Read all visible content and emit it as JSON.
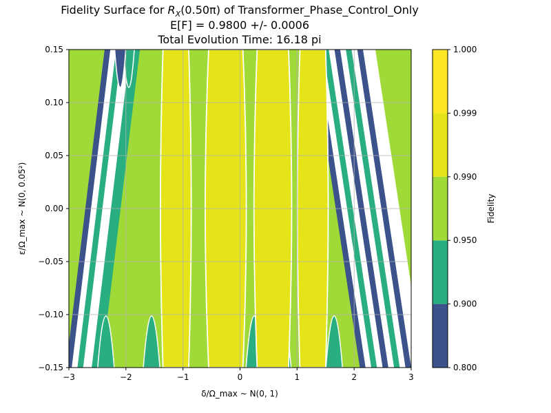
{
  "chart_data": {
    "type": "heatmap",
    "subtype": "filled-contour",
    "title_lines": [
      "Fidelity Surface for R_X(0.50π) of Transformer_Phase_Control_Only",
      "E[F] = 0.9800 +/- 0.0006",
      "Total Evolution Time: 16.18 pi"
    ],
    "title_line1_prefix": "Fidelity Surface for ",
    "title_line1_math": "R",
    "title_line1_math_sub": "X",
    "title_line1_math_arg": "(0.50π)",
    "title_line1_suffix": " of Transformer_Phase_Control_Only",
    "title_line2": "E[F] = 0.9800 +/- 0.0006",
    "title_line3": "Total Evolution Time: 16.18 pi",
    "xlabel": "δ/Ω_max ~ N(0, 1)",
    "ylabel": "ε/Ω_max ~ N(0, 0.05²)",
    "xlim": [
      -3,
      3
    ],
    "ylim": [
      -0.15,
      0.15
    ],
    "x_ticks": [
      -3,
      -2,
      -1,
      0,
      1,
      2,
      3
    ],
    "y_ticks": [
      "-0.15",
      "-0.10",
      "-0.05",
      "0.00",
      "0.05",
      "0.10",
      "0.15"
    ],
    "grid": true,
    "colorbar": {
      "label": "Fidelity",
      "levels": [
        "0.800",
        "0.900",
        "0.950",
        "0.990",
        "0.999",
        "1.000"
      ],
      "band_colors": [
        "#3b528b",
        "#29af7f",
        "#a0da39",
        "#e4e419",
        "#fde725"
      ]
    },
    "contour_line_color": "#ffffff",
    "bands": [
      {
        "label": "0.990-0.999",
        "color": "#e4e419",
        "x_range": [
          -1.35,
          -0.9
        ],
        "y_range": [
          -0.15,
          0.15
        ]
      },
      {
        "label": "0.990-0.999",
        "color": "#e4e419",
        "x_range": [
          -0.55,
          0.05
        ],
        "y_range": [
          -0.15,
          0.15
        ]
      },
      {
        "label": "0.990-0.999",
        "color": "#e4e419",
        "x_range": [
          0.3,
          0.85
        ],
        "y_range": [
          -0.15,
          0.15
        ]
      },
      {
        "label": "0.990-0.999",
        "color": "#e4e419",
        "x_range": [
          1.05,
          1.5
        ],
        "y_range": [
          -0.15,
          0.15
        ]
      }
    ]
  }
}
